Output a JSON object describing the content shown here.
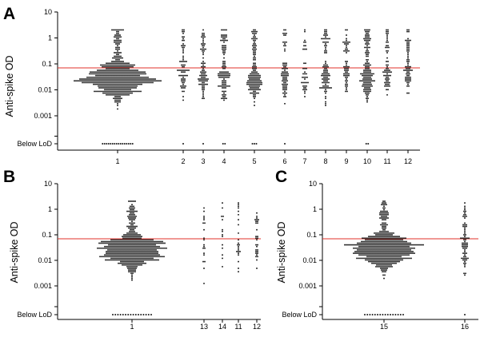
{
  "threshold_color": "#e0302a",
  "dot_color": "#1a1a1a",
  "chart_data": [
    {
      "type": "scatter",
      "panel": "A",
      "ylabel": "Anti-spike OD",
      "yscale": "log",
      "ylim": [
        0.0002,
        10
      ],
      "yticks": [
        "10",
        "1",
        "0.1",
        "0.01",
        "0.001",
        "Below LoD"
      ],
      "threshold": 0.07,
      "groups": [
        {
          "label": "1",
          "n": 640,
          "center_log": -1.6,
          "sigma": 0.38,
          "high_fraction": 0.08,
          "lod_count": 16
        },
        {
          "label": "2",
          "n": 70,
          "center_log": -1.5,
          "sigma": 0.4,
          "high_fraction": 0.3,
          "lod_count": 1
        },
        {
          "label": "3",
          "n": 85,
          "center_log": -1.6,
          "sigma": 0.4,
          "high_fraction": 0.3,
          "lod_count": 1
        },
        {
          "label": "4",
          "n": 110,
          "center_log": -1.6,
          "sigma": 0.4,
          "high_fraction": 0.3,
          "lod_count": 2
        },
        {
          "label": "5",
          "n": 150,
          "center_log": -1.65,
          "sigma": 0.38,
          "high_fraction": 0.25,
          "lod_count": 3
        },
        {
          "label": "6",
          "n": 75,
          "center_log": -1.55,
          "sigma": 0.4,
          "high_fraction": 0.2,
          "lod_count": 1
        },
        {
          "label": "7",
          "n": 40,
          "center_log": -1.5,
          "sigma": 0.4,
          "high_fraction": 0.25,
          "lod_count": 0
        },
        {
          "label": "8",
          "n": 95,
          "center_log": -1.55,
          "sigma": 0.4,
          "high_fraction": 0.3,
          "lod_count": 0
        },
        {
          "label": "9",
          "n": 60,
          "center_log": -1.5,
          "sigma": 0.4,
          "high_fraction": 0.3,
          "lod_count": 0
        },
        {
          "label": "10",
          "n": 150,
          "center_log": -1.6,
          "sigma": 0.38,
          "high_fraction": 0.3,
          "lod_count": 2
        },
        {
          "label": "11",
          "n": 65,
          "center_log": -1.5,
          "sigma": 0.4,
          "high_fraction": 0.3,
          "lod_count": 0
        },
        {
          "label": "12",
          "n": 70,
          "center_log": -1.35,
          "sigma": 0.4,
          "high_fraction": 0.3,
          "lod_count": 0
        }
      ]
    },
    {
      "type": "scatter",
      "panel": "B",
      "ylabel": "Anti-spike OD",
      "yscale": "log",
      "ylim": [
        0.0002,
        10
      ],
      "yticks": [
        "10",
        "1",
        "0.1",
        "0.01",
        "0.001",
        "Below LoD"
      ],
      "threshold": 0.07,
      "groups": [
        {
          "label": "1",
          "n": 640,
          "center_log": -1.6,
          "sigma": 0.38,
          "high_fraction": 0.08,
          "lod_count": 16
        },
        {
          "label": "13",
          "n": 20,
          "center_log": -1.5,
          "sigma": 0.45,
          "high_fraction": 0.3,
          "lod_count": 0
        },
        {
          "label": "14",
          "n": 14,
          "center_log": -1.4,
          "sigma": 0.45,
          "high_fraction": 0.3,
          "lod_count": 0
        },
        {
          "label": "11",
          "n": 24,
          "center_log": -1.55,
          "sigma": 0.4,
          "high_fraction": 0.3,
          "lod_count": 0
        },
        {
          "label": "12",
          "n": 30,
          "center_log": -1.45,
          "sigma": 0.4,
          "high_fraction": 0.3,
          "lod_count": 0
        }
      ]
    },
    {
      "type": "scatter",
      "panel": "C",
      "ylabel": "Anti-spike OD",
      "yscale": "log",
      "ylim": [
        0.0002,
        10
      ],
      "yticks": [
        "10",
        "1",
        "0.1",
        "0.01",
        "0.001",
        "Below LoD"
      ],
      "threshold": 0.07,
      "groups": [
        {
          "label": "15",
          "n": 640,
          "center_log": -1.6,
          "sigma": 0.38,
          "high_fraction": 0.08,
          "lod_count": 16
        },
        {
          "label": "16",
          "n": 75,
          "center_log": -1.5,
          "sigma": 0.4,
          "high_fraction": 0.25,
          "lod_count": 1
        }
      ]
    }
  ]
}
